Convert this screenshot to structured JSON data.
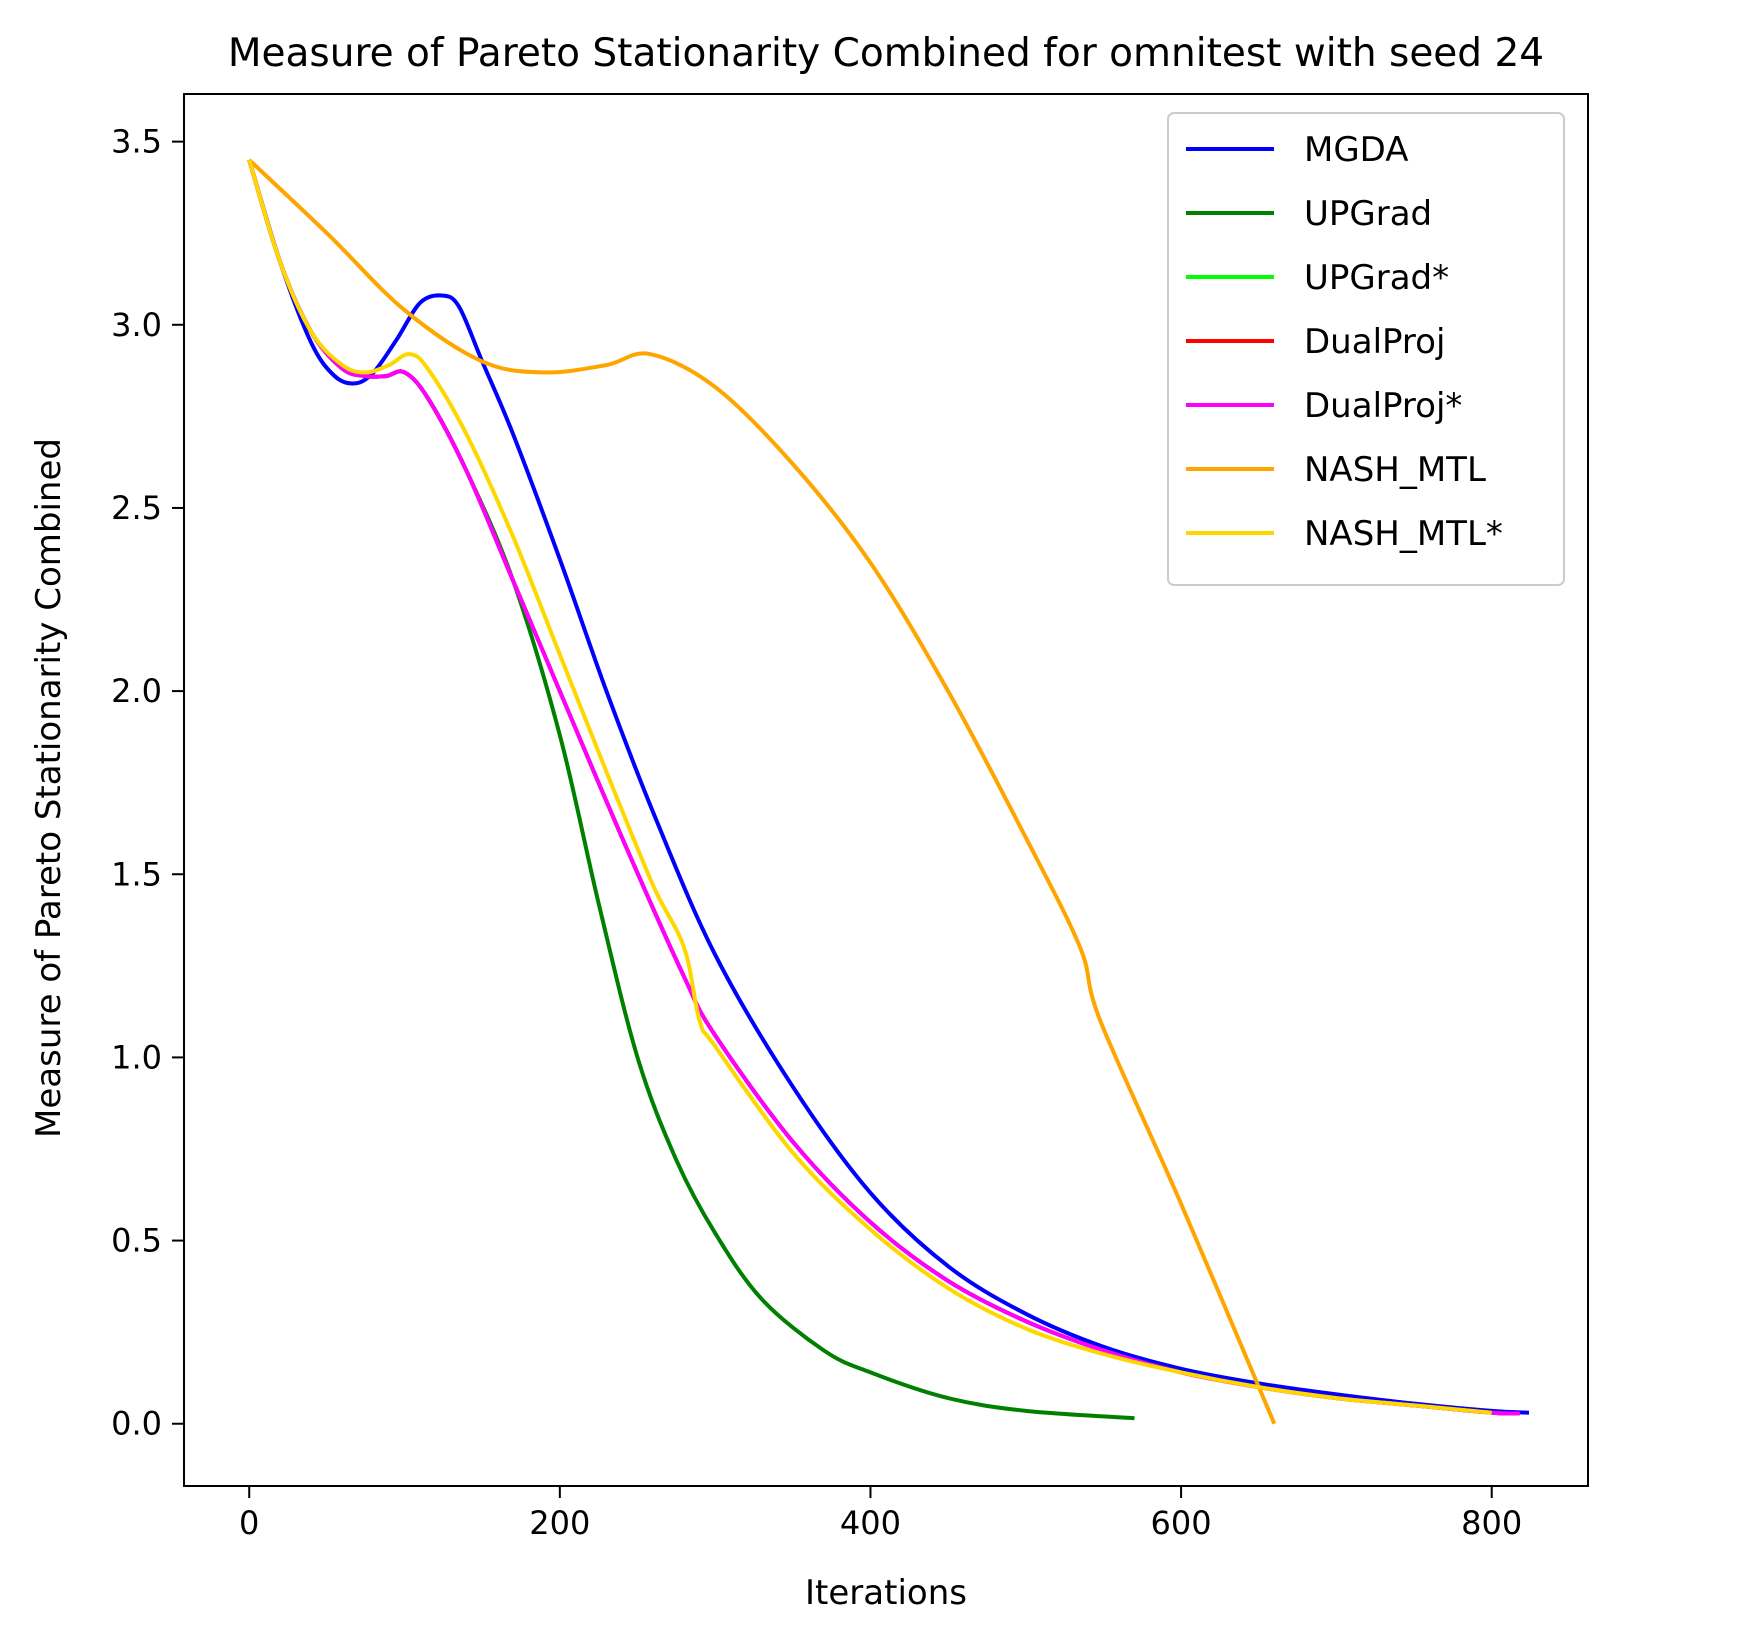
{
  "chart_data": {
    "type": "line",
    "title": "Measure of Pareto Stationarity Combined for omnitest with seed 24",
    "xlabel": "Iterations",
    "ylabel": "Measure of Pareto Stationarity Combined",
    "xlim": [
      -42,
      862
    ],
    "ylim": [
      -0.17,
      3.63
    ],
    "xticks": [
      0,
      200,
      400,
      600,
      800
    ],
    "xtick_labels": [
      "0",
      "200",
      "400",
      "600",
      "800"
    ],
    "yticks": [
      0.0,
      0.5,
      1.0,
      1.5,
      2.0,
      2.5,
      3.0,
      3.5
    ],
    "ytick_labels": [
      "0.0",
      "0.5",
      "1.0",
      "1.5",
      "2.0",
      "2.5",
      "3.0",
      "3.5"
    ],
    "grid": false,
    "legend_position": "top-right",
    "series": [
      {
        "name": "MGDA",
        "color": "#0000ff",
        "x": [
          0,
          20,
          40,
          55,
          68,
          80,
          95,
          110,
          124,
          135,
          150,
          170,
          200,
          230,
          260,
          300,
          350,
          400,
          450,
          500,
          550,
          600,
          650,
          700,
          750,
          800,
          824
        ],
        "y": [
          3.45,
          3.17,
          2.95,
          2.86,
          2.84,
          2.87,
          2.96,
          3.06,
          3.08,
          3.05,
          2.9,
          2.7,
          2.36,
          2.0,
          1.67,
          1.28,
          0.92,
          0.63,
          0.43,
          0.3,
          0.21,
          0.15,
          0.11,
          0.08,
          0.055,
          0.035,
          0.03
        ]
      },
      {
        "name": "UPGrad",
        "color": "#008000",
        "x": [
          0,
          20,
          40,
          60,
          75,
          88,
          100,
          115,
          140,
          170,
          200,
          225,
          250,
          275,
          300,
          330,
          370,
          400,
          450,
          500,
          570
        ],
        "y": [
          3.45,
          3.17,
          2.98,
          2.88,
          2.86,
          2.86,
          2.87,
          2.8,
          2.6,
          2.3,
          1.88,
          1.42,
          1.0,
          0.72,
          0.52,
          0.34,
          0.2,
          0.14,
          0.07,
          0.035,
          0.015
        ]
      },
      {
        "name": "UPGrad*",
        "color": "#00ff00",
        "x": [
          0,
          20,
          40,
          60,
          75,
          88,
          100,
          115,
          140,
          170,
          200,
          240,
          280,
          300,
          350,
          400,
          450,
          500,
          550,
          600,
          650,
          700,
          750,
          800,
          818
        ],
        "y": [
          3.45,
          3.17,
          2.98,
          2.88,
          2.86,
          2.86,
          2.87,
          2.8,
          2.6,
          2.3,
          2.0,
          1.6,
          1.22,
          1.06,
          0.77,
          0.55,
          0.39,
          0.28,
          0.2,
          0.14,
          0.1,
          0.07,
          0.05,
          0.03,
          0.028
        ]
      },
      {
        "name": "DualProj",
        "color": "#ff0000",
        "x": [
          0,
          20,
          40,
          60,
          75,
          88,
          100,
          115,
          140,
          170,
          200,
          240,
          280,
          300,
          350,
          400,
          450,
          500,
          550,
          600,
          650,
          700,
          750,
          800,
          818
        ],
        "y": [
          3.45,
          3.17,
          2.98,
          2.88,
          2.86,
          2.86,
          2.87,
          2.8,
          2.6,
          2.3,
          2.0,
          1.6,
          1.22,
          1.06,
          0.77,
          0.55,
          0.39,
          0.28,
          0.2,
          0.14,
          0.1,
          0.07,
          0.05,
          0.03,
          0.028
        ]
      },
      {
        "name": "DualProj*",
        "color": "#ff00ff",
        "x": [
          0,
          20,
          40,
          60,
          75,
          88,
          100,
          115,
          140,
          170,
          200,
          240,
          280,
          300,
          350,
          400,
          450,
          500,
          550,
          600,
          650,
          700,
          750,
          800,
          818
        ],
        "y": [
          3.45,
          3.17,
          2.98,
          2.88,
          2.86,
          2.86,
          2.87,
          2.8,
          2.6,
          2.3,
          2.0,
          1.6,
          1.22,
          1.06,
          0.77,
          0.55,
          0.39,
          0.28,
          0.2,
          0.14,
          0.1,
          0.07,
          0.05,
          0.03,
          0.028
        ]
      },
      {
        "name": "NASH_MTL",
        "color": "#ffa500",
        "x": [
          0,
          50,
          100,
          150,
          190,
          230,
          258,
          300,
          350,
          400,
          450,
          500,
          535,
          548,
          600,
          660
        ],
        "y": [
          3.45,
          3.25,
          3.04,
          2.9,
          2.87,
          2.89,
          2.92,
          2.83,
          2.62,
          2.35,
          2.0,
          1.6,
          1.3,
          1.1,
          0.6,
          0.0
        ]
      },
      {
        "name": "NASH_MTL*",
        "color": "#ffd700",
        "x": [
          0,
          20,
          40,
          60,
          75,
          90,
          103,
          115,
          140,
          170,
          200,
          230,
          260,
          280,
          290,
          300,
          350,
          400,
          450,
          500,
          550,
          600,
          650,
          700,
          750,
          800
        ],
        "y": [
          3.45,
          3.17,
          2.98,
          2.89,
          2.87,
          2.89,
          2.92,
          2.88,
          2.7,
          2.42,
          2.1,
          1.78,
          1.47,
          1.3,
          1.1,
          1.03,
          0.74,
          0.53,
          0.37,
          0.26,
          0.19,
          0.14,
          0.1,
          0.07,
          0.05,
          0.03
        ]
      }
    ]
  }
}
